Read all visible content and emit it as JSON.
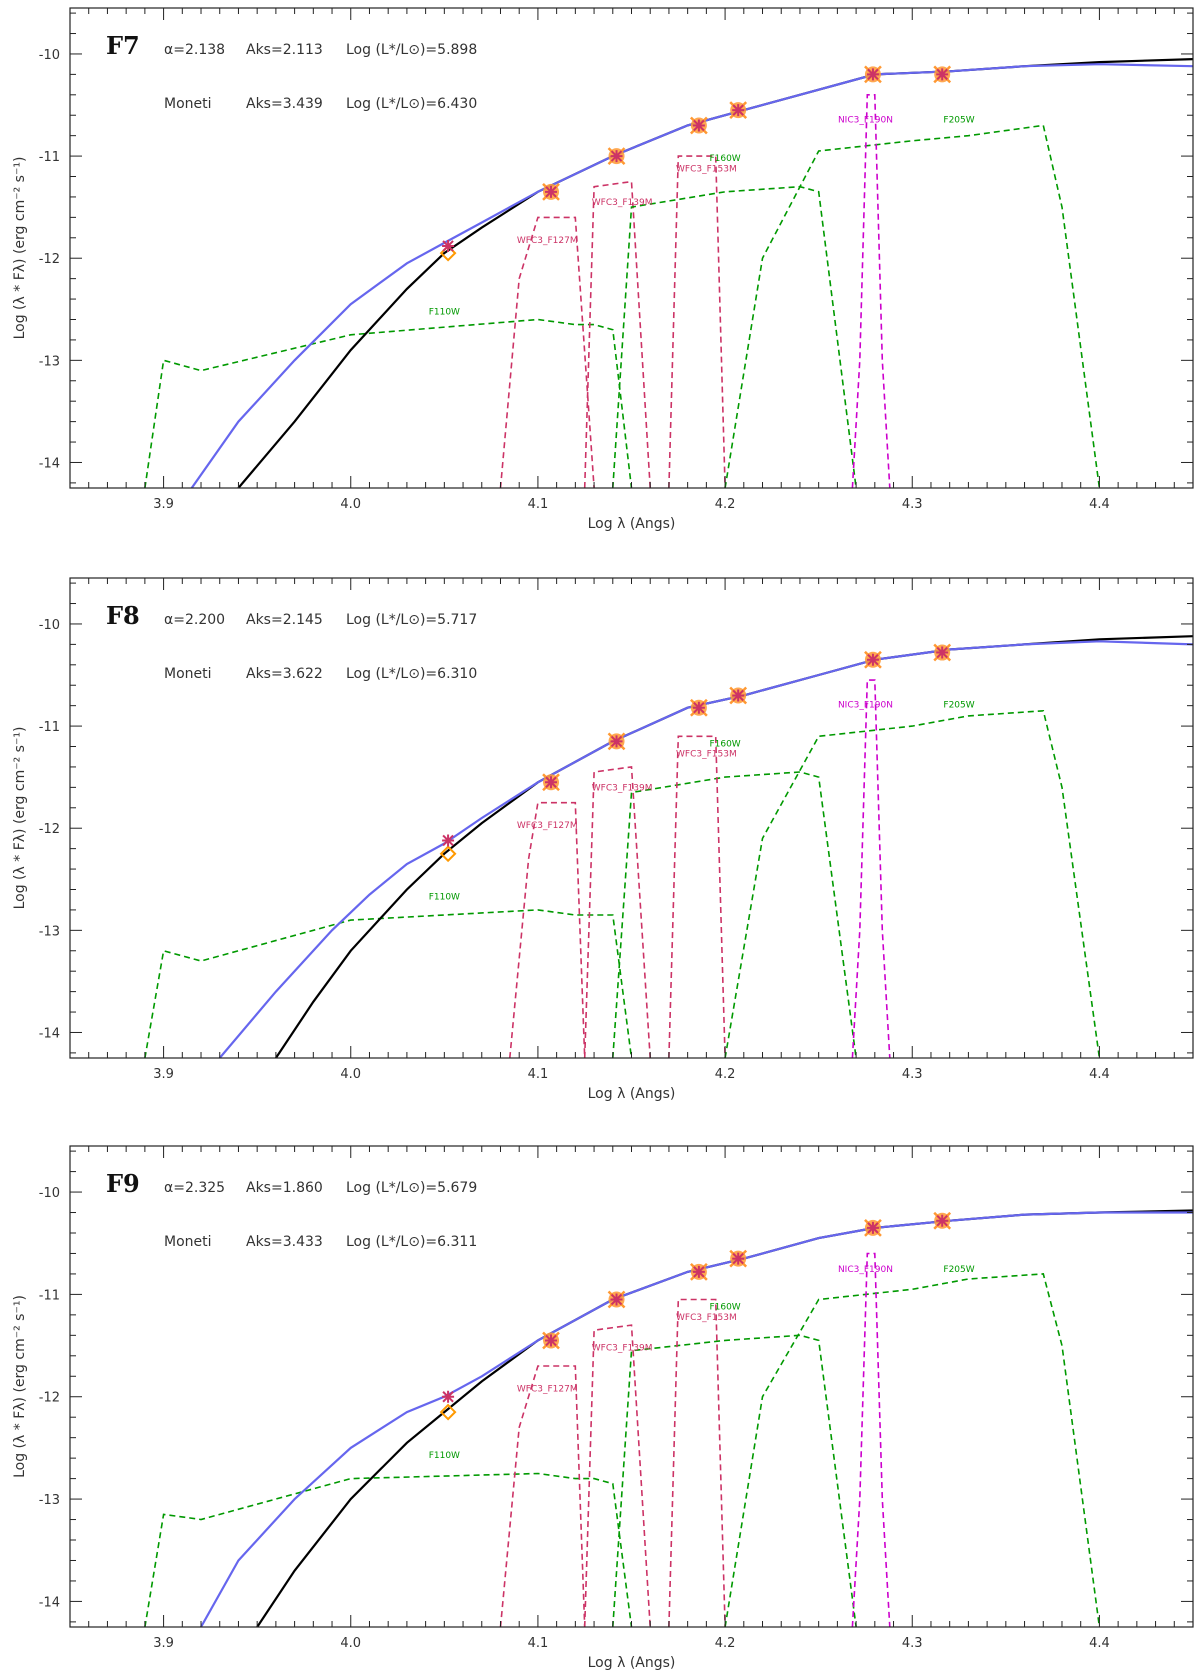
{
  "chart_data": [
    {
      "type": "line",
      "panel": "F7",
      "xlabel": "Log λ (Angs)",
      "ylabel": "Log (λ * Fλ)  (erg cm⁻² s⁻¹)",
      "xlim": [
        3.85,
        4.45
      ],
      "ylim": [
        -14.25,
        -9.55
      ],
      "xticks": [
        3.9,
        4.0,
        4.1,
        4.2,
        4.3,
        4.4
      ],
      "yticks": [
        -10,
        -11,
        -12,
        -13,
        -14
      ],
      "annotations": {
        "alpha": "α=2.138",
        "aks": "Aks=2.113",
        "lum": "Log (L*/L⊙)=5.898",
        "moneti": "Moneti",
        "moneti_aks": "Aks=3.439",
        "moneti_lum": "Log (L*/L⊙)=6.430"
      },
      "series": [
        {
          "name": "model-black",
          "color": "#000000",
          "x": [
            3.94,
            3.97,
            4.0,
            4.03,
            4.05,
            4.07,
            4.1,
            4.14,
            4.18,
            4.21,
            4.25,
            4.28,
            4.32,
            4.36,
            4.4,
            4.45
          ],
          "y": [
            -14.25,
            -13.6,
            -12.9,
            -12.3,
            -11.95,
            -11.7,
            -11.35,
            -11.0,
            -10.7,
            -10.55,
            -10.35,
            -10.2,
            -10.17,
            -10.12,
            -10.08,
            -10.05
          ]
        },
        {
          "name": "model-blue",
          "color": "#6666ee",
          "x": [
            3.915,
            3.94,
            3.97,
            4.0,
            4.03,
            4.05,
            4.07,
            4.1,
            4.14,
            4.18,
            4.21,
            4.25,
            4.28,
            4.32,
            4.36,
            4.4,
            4.45
          ],
          "y": [
            -14.25,
            -13.6,
            -13.0,
            -12.45,
            -12.05,
            -11.85,
            -11.65,
            -11.35,
            -11.0,
            -10.7,
            -10.55,
            -10.35,
            -10.2,
            -10.17,
            -10.12,
            -10.1,
            -10.12
          ]
        }
      ],
      "photometry": [
        {
          "x": 4.052,
          "y": -11.88,
          "model": -11.95
        },
        {
          "x": 4.107,
          "y": -11.35,
          "model": -11.35
        },
        {
          "x": 4.142,
          "y": -11.0,
          "model": -11.0
        },
        {
          "x": 4.186,
          "y": -10.7,
          "model": -10.7
        },
        {
          "x": 4.207,
          "y": -10.55,
          "model": -10.55
        },
        {
          "x": 4.279,
          "y": -10.2,
          "model": -10.2
        },
        {
          "x": 4.316,
          "y": -10.2,
          "model": -10.2
        }
      ],
      "filters": [
        {
          "name": "F110W",
          "label": "F110W",
          "color": "#009900",
          "x": [
            3.89,
            3.9,
            3.92,
            4.0,
            4.1,
            4.12,
            4.13,
            4.14,
            4.15
          ],
          "y": [
            -14.25,
            -13.0,
            -13.1,
            -12.75,
            -12.6,
            -12.65,
            -12.65,
            -12.7,
            -14.25
          ],
          "label_x": 4.05,
          "label_y": -12.55
        },
        {
          "name": "WFC3_F127M",
          "label": "WFC3_F127M",
          "color": "#cc3366",
          "x": [
            4.08,
            4.09,
            4.1,
            4.12,
            4.13
          ],
          "y": [
            -14.25,
            -12.2,
            -11.6,
            -11.6,
            -14.25
          ],
          "label_x": 4.105,
          "label_y": -11.85
        },
        {
          "name": "WFC3_F139M",
          "label": "WFC3_F139M",
          "color": "#cc3366",
          "x": [
            4.125,
            4.13,
            4.15,
            4.16
          ],
          "y": [
            -14.25,
            -11.3,
            -11.25,
            -14.25
          ],
          "label_x": 4.145,
          "label_y": -11.48
        },
        {
          "name": "F160W",
          "label": "F160W",
          "color": "#009900",
          "x": [
            4.14,
            4.15,
            4.2,
            4.24,
            4.25,
            4.27
          ],
          "y": [
            -14.25,
            -11.5,
            -11.35,
            -11.3,
            -11.35,
            -14.25
          ],
          "label_x": 4.2,
          "label_y": -11.05
        },
        {
          "name": "WFC3_F153M",
          "label": "WFC3_F153M",
          "color": "#cc3366",
          "x": [
            4.17,
            4.175,
            4.195,
            4.2
          ],
          "y": [
            -14.25,
            -11.0,
            -11.0,
            -14.25
          ],
          "label_x": 4.19,
          "label_y": -11.15
        },
        {
          "name": "F205W",
          "label": "F205W",
          "color": "#009900",
          "x": [
            4.2,
            4.22,
            4.25,
            4.3,
            4.33,
            4.37,
            4.38,
            4.4
          ],
          "y": [
            -14.25,
            -12.0,
            -10.95,
            -10.85,
            -10.8,
            -10.7,
            -11.5,
            -14.25
          ],
          "label_x": 4.325,
          "label_y": -10.67
        },
        {
          "name": "NIC3_F190N",
          "label": "NIC3_F190N",
          "color": "#cc00cc",
          "x": [
            4.268,
            4.272,
            4.276,
            4.28,
            4.284,
            4.288
          ],
          "y": [
            -14.25,
            -13.0,
            -10.4,
            -10.4,
            -13.0,
            -14.25
          ],
          "label_x": 4.275,
          "label_y": -10.67
        }
      ]
    },
    {
      "type": "line",
      "panel": "F8",
      "xlabel": "Log λ (Angs)",
      "ylabel": "Log (λ * Fλ)  (erg cm⁻² s⁻¹)",
      "xlim": [
        3.85,
        4.45
      ],
      "ylim": [
        -14.25,
        -9.55
      ],
      "xticks": [
        3.9,
        4.0,
        4.1,
        4.2,
        4.3,
        4.4
      ],
      "yticks": [
        -10,
        -11,
        -12,
        -13,
        -14
      ],
      "annotations": {
        "alpha": "α=2.200",
        "aks": "Aks=2.145",
        "lum": "Log (L*/L⊙)=5.717",
        "moneti": "Moneti",
        "moneti_aks": "Aks=3.622",
        "moneti_lum": "Log (L*/L⊙)=6.310"
      },
      "series": [
        {
          "name": "model-black",
          "color": "#000000",
          "x": [
            3.96,
            3.98,
            4.0,
            4.03,
            4.05,
            4.07,
            4.1,
            4.14,
            4.18,
            4.21,
            4.25,
            4.28,
            4.32,
            4.36,
            4.4,
            4.45
          ],
          "y": [
            -14.25,
            -13.7,
            -13.2,
            -12.6,
            -12.25,
            -11.95,
            -11.55,
            -11.15,
            -10.82,
            -10.7,
            -10.5,
            -10.35,
            -10.25,
            -10.2,
            -10.15,
            -10.12
          ]
        },
        {
          "name": "model-blue",
          "color": "#6666ee",
          "x": [
            3.93,
            3.96,
            3.99,
            4.01,
            4.03,
            4.05,
            4.07,
            4.1,
            4.14,
            4.18,
            4.21,
            4.25,
            4.28,
            4.32,
            4.36,
            4.4,
            4.45
          ],
          "y": [
            -14.25,
            -13.6,
            -13.0,
            -12.65,
            -12.35,
            -12.15,
            -11.9,
            -11.55,
            -11.15,
            -10.82,
            -10.7,
            -10.5,
            -10.35,
            -10.25,
            -10.2,
            -10.17,
            -10.2
          ]
        }
      ],
      "photometry": [
        {
          "x": 4.052,
          "y": -12.12,
          "model": -12.25
        },
        {
          "x": 4.107,
          "y": -11.55,
          "model": -11.55
        },
        {
          "x": 4.142,
          "y": -11.15,
          "model": -11.15
        },
        {
          "x": 4.186,
          "y": -10.82,
          "model": -10.82
        },
        {
          "x": 4.207,
          "y": -10.7,
          "model": -10.7
        },
        {
          "x": 4.279,
          "y": -10.35,
          "model": -10.35
        },
        {
          "x": 4.316,
          "y": -10.28,
          "model": -10.28
        }
      ],
      "filters": [
        {
          "name": "F110W",
          "label": "F110W",
          "color": "#009900",
          "x": [
            3.89,
            3.9,
            3.92,
            4.0,
            4.1,
            4.12,
            4.13,
            4.14,
            4.15
          ],
          "y": [
            -14.25,
            -13.2,
            -13.3,
            -12.9,
            -12.8,
            -12.85,
            -12.85,
            -12.85,
            -14.25
          ],
          "label_x": 4.05,
          "label_y": -12.7
        },
        {
          "name": "WFC3_F127M",
          "label": "WFC3_F127M",
          "color": "#cc3366",
          "x": [
            4.085,
            4.095,
            4.1,
            4.12,
            4.125
          ],
          "y": [
            -14.25,
            -12.3,
            -11.75,
            -11.75,
            -14.25
          ],
          "label_x": 4.105,
          "label_y": -12.0
        },
        {
          "name": "WFC3_F139M",
          "label": "WFC3_F139M",
          "color": "#cc3366",
          "x": [
            4.125,
            4.13,
            4.15,
            4.16
          ],
          "y": [
            -14.25,
            -11.45,
            -11.4,
            -14.25
          ],
          "label_x": 4.145,
          "label_y": -11.63
        },
        {
          "name": "F160W",
          "label": "F160W",
          "color": "#009900",
          "x": [
            4.14,
            4.15,
            4.2,
            4.24,
            4.25,
            4.27
          ],
          "y": [
            -14.25,
            -11.65,
            -11.5,
            -11.45,
            -11.5,
            -14.25
          ],
          "label_x": 4.2,
          "label_y": -11.2
        },
        {
          "name": "WFC3_F153M",
          "label": "WFC3_F153M",
          "color": "#cc3366",
          "x": [
            4.17,
            4.175,
            4.195,
            4.2
          ],
          "y": [
            -14.25,
            -11.1,
            -11.1,
            -14.25
          ],
          "label_x": 4.19,
          "label_y": -11.3
        },
        {
          "name": "F205W",
          "label": "F205W",
          "color": "#009900",
          "x": [
            4.2,
            4.22,
            4.25,
            4.3,
            4.33,
            4.37,
            4.38,
            4.4
          ],
          "y": [
            -14.25,
            -12.1,
            -11.1,
            -11.0,
            -10.9,
            -10.85,
            -11.6,
            -14.25
          ],
          "label_x": 4.325,
          "label_y": -10.82
        },
        {
          "name": "NIC3_F190N",
          "label": "NIC3_F190N",
          "color": "#cc00cc",
          "x": [
            4.268,
            4.272,
            4.276,
            4.28,
            4.284,
            4.288
          ],
          "y": [
            -14.25,
            -13.0,
            -10.55,
            -10.55,
            -13.0,
            -14.25
          ],
          "label_x": 4.275,
          "label_y": -10.82
        }
      ]
    },
    {
      "type": "line",
      "panel": "F9",
      "xlabel": "Log λ (Angs)",
      "ylabel": "Log (λ * Fλ)  (erg cm⁻² s⁻¹)",
      "xlim": [
        3.85,
        4.45
      ],
      "ylim": [
        -14.25,
        -9.55
      ],
      "xticks": [
        3.9,
        4.0,
        4.1,
        4.2,
        4.3,
        4.4
      ],
      "yticks": [
        -10,
        -11,
        -12,
        -13,
        -14
      ],
      "annotations": {
        "alpha": "α=2.325",
        "aks": "Aks=1.860",
        "lum": "Log (L*/L⊙)=5.679",
        "moneti": "Moneti",
        "moneti_aks": "Aks=3.433",
        "moneti_lum": "Log (L*/L⊙)=6.311"
      },
      "series": [
        {
          "name": "model-black",
          "color": "#000000",
          "x": [
            3.95,
            3.97,
            4.0,
            4.03,
            4.05,
            4.07,
            4.1,
            4.14,
            4.18,
            4.21,
            4.25,
            4.28,
            4.32,
            4.36,
            4.4,
            4.45
          ],
          "y": [
            -14.25,
            -13.7,
            -13.0,
            -12.45,
            -12.15,
            -11.85,
            -11.45,
            -11.05,
            -10.78,
            -10.65,
            -10.45,
            -10.35,
            -10.28,
            -10.22,
            -10.2,
            -10.18
          ]
        },
        {
          "name": "model-blue",
          "color": "#6666ee",
          "x": [
            3.92,
            3.94,
            3.97,
            4.0,
            4.03,
            4.05,
            4.07,
            4.1,
            4.14,
            4.18,
            4.21,
            4.25,
            4.28,
            4.32,
            4.36,
            4.4,
            4.45
          ],
          "y": [
            -14.25,
            -13.6,
            -13.0,
            -12.5,
            -12.15,
            -12.0,
            -11.8,
            -11.45,
            -11.05,
            -10.78,
            -10.65,
            -10.45,
            -10.35,
            -10.28,
            -10.22,
            -10.2,
            -10.2
          ]
        }
      ],
      "photometry": [
        {
          "x": 4.052,
          "y": -12.0,
          "model": -12.15
        },
        {
          "x": 4.107,
          "y": -11.45,
          "model": -11.45
        },
        {
          "x": 4.142,
          "y": -11.05,
          "model": -11.05
        },
        {
          "x": 4.186,
          "y": -10.78,
          "model": -10.78
        },
        {
          "x": 4.207,
          "y": -10.65,
          "model": -10.65
        },
        {
          "x": 4.279,
          "y": -10.35,
          "model": -10.35
        },
        {
          "x": 4.316,
          "y": -10.28,
          "model": -10.28
        }
      ],
      "filters": [
        {
          "name": "F110W",
          "label": "F110W",
          "color": "#009900",
          "x": [
            3.89,
            3.9,
            3.92,
            4.0,
            4.1,
            4.12,
            4.13,
            4.14,
            4.15
          ],
          "y": [
            -14.25,
            -13.15,
            -13.2,
            -12.8,
            -12.75,
            -12.8,
            -12.8,
            -12.85,
            -14.25
          ],
          "label_x": 4.05,
          "label_y": -12.6
        },
        {
          "name": "WFC3_F127M",
          "label": "WFC3_F127M",
          "color": "#cc3366",
          "x": [
            4.08,
            4.09,
            4.1,
            4.12,
            4.125
          ],
          "y": [
            -14.25,
            -12.3,
            -11.7,
            -11.7,
            -14.25
          ],
          "label_x": 4.105,
          "label_y": -11.95
        },
        {
          "name": "WFC3_F139M",
          "label": "WFC3_F139M",
          "color": "#cc3366",
          "x": [
            4.125,
            4.13,
            4.15,
            4.16
          ],
          "y": [
            -14.25,
            -11.35,
            -11.3,
            -14.25
          ],
          "label_x": 4.145,
          "label_y": -11.55
        },
        {
          "name": "F160W",
          "label": "F160W",
          "color": "#009900",
          "x": [
            4.14,
            4.15,
            4.2,
            4.24,
            4.25,
            4.27
          ],
          "y": [
            -14.25,
            -11.55,
            -11.45,
            -11.4,
            -11.45,
            -14.25
          ],
          "label_x": 4.2,
          "label_y": -11.15
        },
        {
          "name": "WFC3_F153M",
          "label": "WFC3_F153M",
          "color": "#cc3366",
          "x": [
            4.17,
            4.175,
            4.195,
            4.2
          ],
          "y": [
            -14.25,
            -11.05,
            -11.05,
            -14.25
          ],
          "label_x": 4.19,
          "label_y": -11.25
        },
        {
          "name": "F205W",
          "label": "F205W",
          "color": "#009900",
          "x": [
            4.2,
            4.22,
            4.25,
            4.3,
            4.33,
            4.37,
            4.38,
            4.4
          ],
          "y": [
            -14.25,
            -12.0,
            -11.05,
            -10.95,
            -10.85,
            -10.8,
            -11.5,
            -14.25
          ],
          "label_x": 4.325,
          "label_y": -10.78
        },
        {
          "name": "NIC3_F190N",
          "label": "NIC3_F190N",
          "color": "#cc00cc",
          "x": [
            4.268,
            4.272,
            4.276,
            4.28,
            4.284,
            4.288
          ],
          "y": [
            -14.25,
            -13.0,
            -10.6,
            -10.6,
            -13.0,
            -14.25
          ],
          "label_x": 4.275,
          "label_y": -10.78
        }
      ]
    }
  ]
}
